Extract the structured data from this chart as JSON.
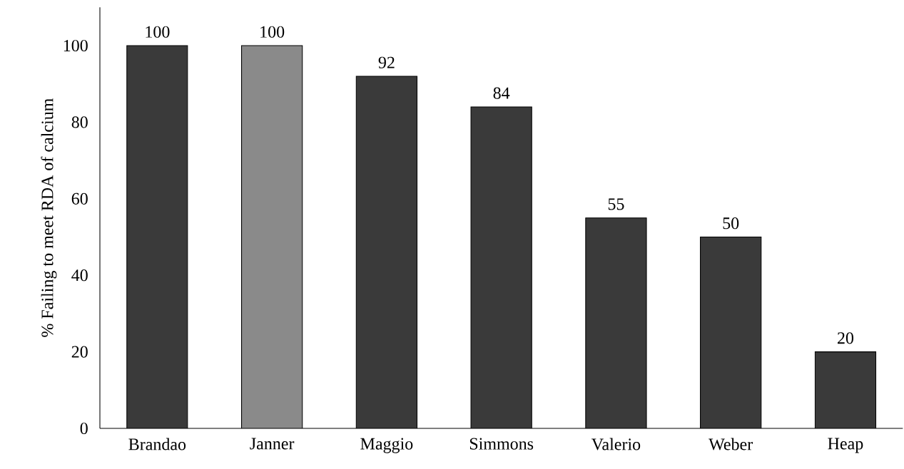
{
  "chart_data": {
    "type": "bar",
    "ylabel": "% Failing to meet RDA of calcium",
    "categories": [
      "Brandao",
      "Janner",
      "Maggio",
      "Simmons",
      "Valerio",
      "Weber",
      "Heap"
    ],
    "values": [
      100,
      100,
      92,
      84,
      55,
      50,
      20
    ],
    "colors": [
      "#3a3a3a",
      "#8a8a8a",
      "#3a3a3a",
      "#3a3a3a",
      "#3a3a3a",
      "#3a3a3a",
      "#3a3a3a"
    ],
    "ylim": [
      0,
      110
    ],
    "yticks": [
      0,
      20,
      40,
      60,
      80,
      100
    ],
    "data_labels": true,
    "grid": false
  }
}
